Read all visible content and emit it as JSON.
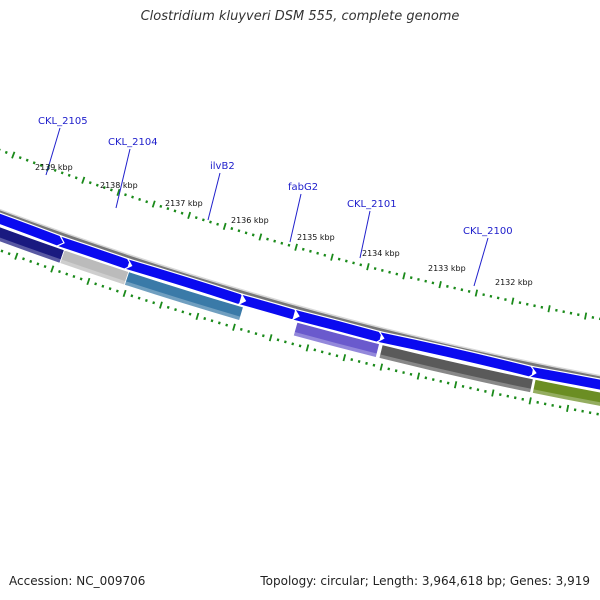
{
  "title": "Clostridium kluyveri DSM 555, complete genome",
  "accession": "Accession: NC_009706",
  "summary": "Topology: circular; Length: 3,964,618 bp; Genes: 3,919",
  "colors": {
    "tick": "#1a8a1a",
    "cds": "#0a0af0",
    "backbone": "#777777",
    "label": "#2020cc",
    "leader": "#2020cc"
  },
  "kbp_labels": [
    "2139 kbp",
    "2138 kbp",
    "2137 kbp",
    "2136 kbp",
    "2135 kbp",
    "2134 kbp",
    "2133 kbp",
    "2132 kbp"
  ],
  "genes": [
    {
      "name": "CKL_2105",
      "color": "#1a1a80"
    },
    {
      "name": "CKL_2104",
      "color": "#bbbbbb"
    },
    {
      "name": "ilvB2",
      "color": "#3a7aa8"
    },
    {
      "name": "fabG2",
      "color": ""
    },
    {
      "name": "CKL_2101",
      "color": "#6a5acd"
    },
    {
      "name": "CKL_2100",
      "color": "#5a5a5a"
    },
    {
      "name": "",
      "color": "#6b8e23"
    }
  ]
}
